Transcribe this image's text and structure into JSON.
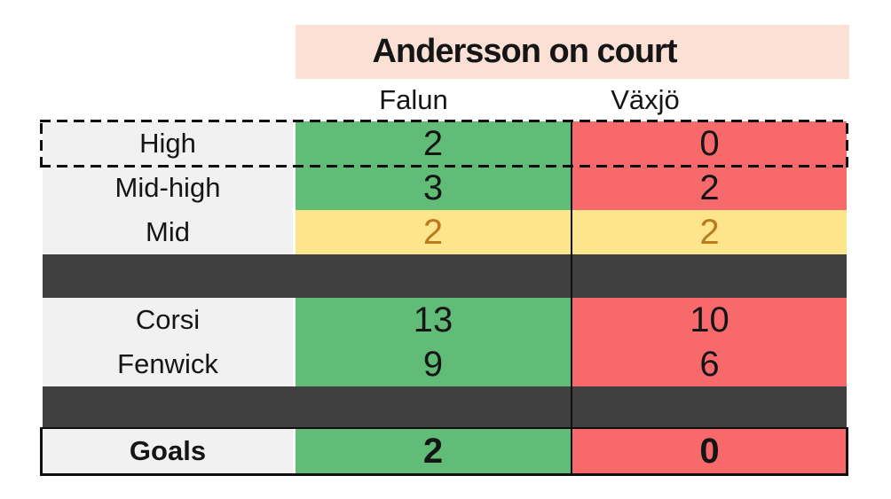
{
  "title": "Andersson on court",
  "columns": {
    "falun": "Falun",
    "vaxjo": "Växjö"
  },
  "rows": {
    "high": {
      "label": "High",
      "falun": "2",
      "vaxjo": "0"
    },
    "mid_high": {
      "label": "Mid-high",
      "falun": "3",
      "vaxjo": "2"
    },
    "mid": {
      "label": "Mid",
      "falun": "2",
      "vaxjo": "2"
    },
    "corsi": {
      "label": "Corsi",
      "falun": "13",
      "vaxjo": "10"
    },
    "fenwick": {
      "label": "Fenwick",
      "falun": "9",
      "vaxjo": "6"
    },
    "goals": {
      "label": "Goals",
      "falun": "2",
      "vaxjo": "0"
    }
  },
  "colors": {
    "cell_green": "#60BC77",
    "cell_red": "#F8696B",
    "cell_yellow": "#FCE58A",
    "yellow_text_gold": "#B97A20",
    "title_bar_pink": "#FAE0D5",
    "label_column_gray": "#F1F1F1",
    "separator_dark_gray": "#3F3F3F",
    "line_black": "#0F0F0F"
  },
  "chart_data": {
    "type": "table",
    "title": "Andersson on court",
    "columns": [
      "Falun",
      "Växjö"
    ],
    "rows": [
      {
        "label": "High",
        "values": [
          2,
          0
        ],
        "cell_colors": [
          "green",
          "red"
        ],
        "highlight": "dashed-outline"
      },
      {
        "label": "Mid-high",
        "values": [
          3,
          2
        ],
        "cell_colors": [
          "green",
          "red"
        ]
      },
      {
        "label": "Mid",
        "values": [
          2,
          2
        ],
        "cell_colors": [
          "yellow",
          "yellow"
        ]
      },
      {
        "separator": true
      },
      {
        "label": "Corsi",
        "values": [
          13,
          10
        ],
        "cell_colors": [
          "green",
          "red"
        ]
      },
      {
        "label": "Fenwick",
        "values": [
          9,
          6
        ],
        "cell_colors": [
          "green",
          "red"
        ]
      },
      {
        "separator": true
      },
      {
        "label": "Goals",
        "values": [
          2,
          0
        ],
        "cell_colors": [
          "green",
          "red"
        ],
        "highlight": "solid-outline",
        "bold": true
      }
    ],
    "layout_hints": {
      "dark_separator_bars_between_groups": true,
      "vertical_divider_between_columns": true,
      "label_column_left": true
    }
  }
}
